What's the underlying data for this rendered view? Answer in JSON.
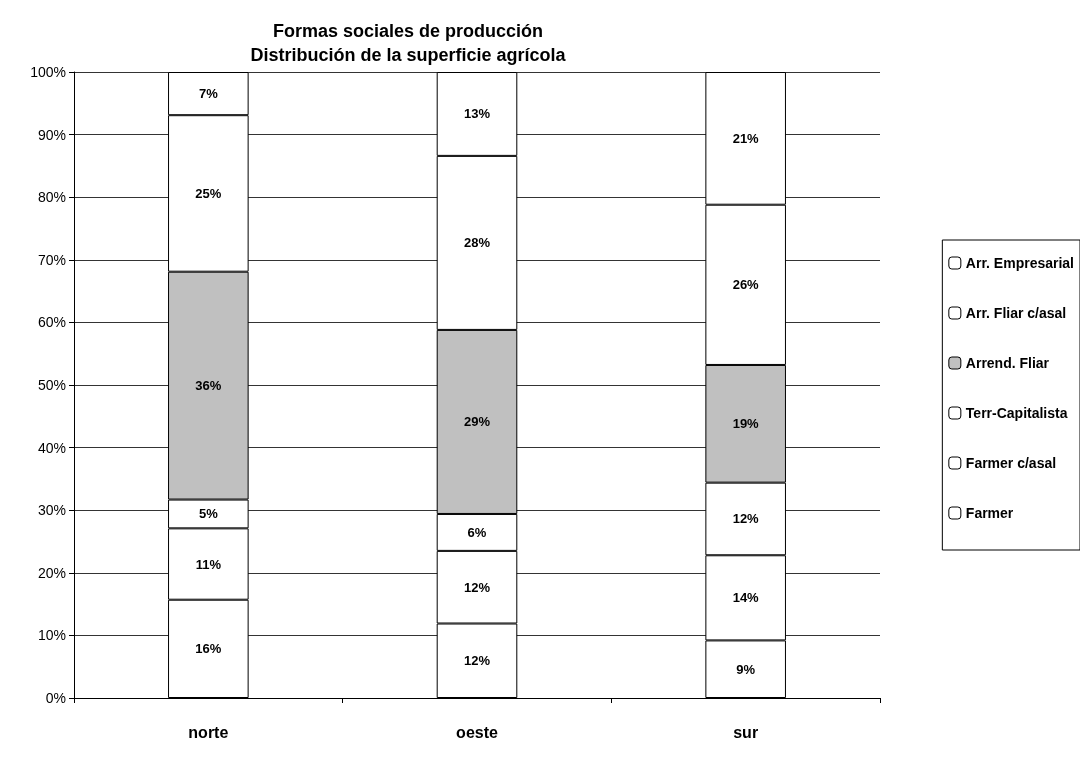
{
  "chart_data": {
    "type": "bar",
    "stacked": true,
    "title": "Formas sociales de producción\nDistribución de la superficie agrícola",
    "categories": [
      "norte",
      "oeste",
      "sur"
    ],
    "series": [
      {
        "name": "Farmer",
        "color": "#ffffff",
        "values": [
          15.7,
          11.9,
          9.2
        ],
        "value_labels": [
          "16%",
          "12%",
          "9%"
        ]
      },
      {
        "name": "Farmer c/asal",
        "color": "#ffffff",
        "values": [
          11.4,
          11.6,
          13.6
        ],
        "value_labels": [
          "11%",
          "12%",
          "14%"
        ]
      },
      {
        "name": "Terr-Capitalista",
        "color": "#ffffff",
        "values": [
          4.6,
          5.9,
          11.6
        ],
        "value_labels": [
          "5%",
          "6%",
          "12%"
        ]
      },
      {
        "name": "Arrend. Fliar",
        "color": "#c0c0c0",
        "values": [
          36.4,
          29.4,
          18.8
        ],
        "value_labels": [
          "36%",
          "29%",
          "19%"
        ]
      },
      {
        "name": "Arr. Fliar c/asal",
        "color": "#ffffff",
        "values": [
          25.0,
          27.8,
          25.6
        ],
        "value_labels": [
          "25%",
          "28%",
          "26%"
        ]
      },
      {
        "name": "Arr. Empresarial",
        "color": "#ffffff",
        "values": [
          6.9,
          13.4,
          21.2
        ],
        "value_labels": [
          "7%",
          "13%",
          "21%"
        ]
      }
    ],
    "ylim": [
      0,
      100
    ],
    "yticks": [
      {
        "value": 0,
        "label": "0%"
      },
      {
        "value": 10,
        "label": "10%"
      },
      {
        "value": 20,
        "label": "20%"
      },
      {
        "value": 30,
        "label": "30%"
      },
      {
        "value": 40,
        "label": "40%"
      },
      {
        "value": 50,
        "label": "50%"
      },
      {
        "value": 60,
        "label": "60%"
      },
      {
        "value": 70,
        "label": "70%"
      },
      {
        "value": 80,
        "label": "80%"
      },
      {
        "value": 90,
        "label": "90%"
      },
      {
        "value": 100,
        "label": "100%"
      }
    ],
    "grid": "y",
    "legend": "right"
  }
}
